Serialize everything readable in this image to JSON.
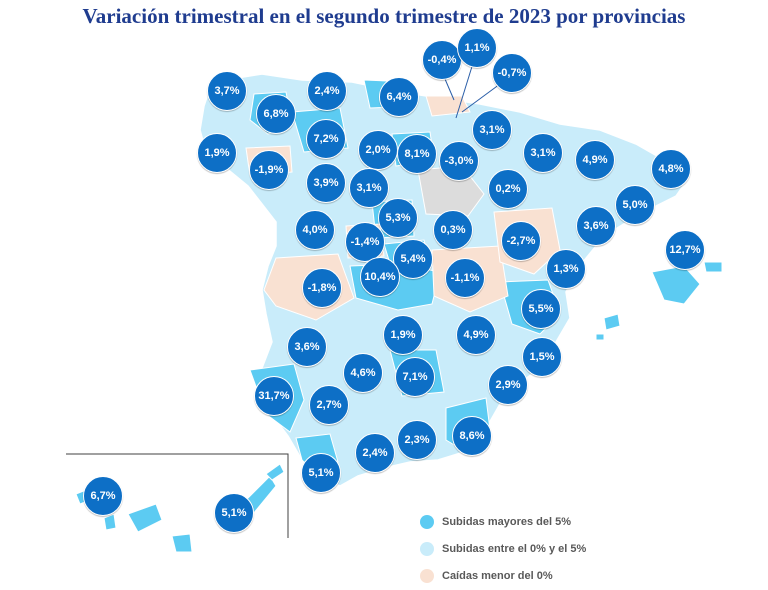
{
  "title": "Variación trimestral en el segundo trimestre de 2023 por provincias",
  "colors": {
    "high": "#5ccbf2",
    "mid": "#c9ecfa",
    "low": "#f9e1d2",
    "nodata": "#dcdcdc",
    "badge": "#0d6fc6"
  },
  "legend": [
    {
      "label": "Subidas mayores del 5%",
      "color": "#5ccbf2"
    },
    {
      "label": "Subidas entre el 0% y el 5%",
      "color": "#c9ecfa"
    },
    {
      "label": "Caídas menor del 0%",
      "color": "#f9e1d2"
    }
  ],
  "values": [
    "3,7%",
    "2,4%",
    "6,4%",
    "-0,4%",
    "1,1%",
    "-0,7%",
    "6,8%",
    "7,2%",
    "3,1%",
    "1,9%",
    "-1,9%",
    "2,0%",
    "8,1%",
    "-3,0%",
    "3,1%",
    "4,9%",
    "4,8%",
    "3,9%",
    "3,1%",
    "0,2%",
    "5,0%",
    "4,0%",
    "5,3%",
    "-1,4%",
    "0,3%",
    "-2,7%",
    "3,6%",
    "12,7%",
    "5,4%",
    "10,4%",
    "-1,8%",
    "-1,1%",
    "1,3%",
    "5,5%",
    "3,6%",
    "1,9%",
    "4,9%",
    "1,5%",
    "4,6%",
    "7,1%",
    "2,9%",
    "31,7%",
    "2,7%",
    "8,6%",
    "2,3%",
    "2,4%",
    "5,1%",
    "6,7%",
    "5,1%"
  ]
}
